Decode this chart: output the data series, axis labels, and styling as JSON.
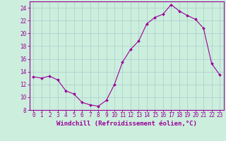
{
  "hours": [
    0,
    1,
    2,
    3,
    4,
    5,
    6,
    7,
    8,
    9,
    10,
    11,
    12,
    13,
    14,
    15,
    16,
    17,
    18,
    19,
    20,
    21,
    22,
    23
  ],
  "values": [
    13.2,
    13.0,
    13.3,
    12.7,
    11.0,
    10.5,
    9.2,
    8.8,
    8.6,
    9.5,
    12.0,
    15.5,
    17.5,
    18.8,
    21.5,
    22.5,
    23.0,
    24.5,
    23.5,
    22.8,
    22.2,
    20.8,
    15.3,
    13.5
  ],
  "xlabel": "Windchill (Refroidissement éolien,°C)",
  "ylim": [
    8,
    25
  ],
  "xlim_min": -0.5,
  "xlim_max": 23.5,
  "yticks": [
    8,
    10,
    12,
    14,
    16,
    18,
    20,
    22,
    24
  ],
  "xticks": [
    0,
    1,
    2,
    3,
    4,
    5,
    6,
    7,
    8,
    9,
    10,
    11,
    12,
    13,
    14,
    15,
    16,
    17,
    18,
    19,
    20,
    21,
    22,
    23
  ],
  "line_color": "#990099",
  "marker": "D",
  "marker_size": 2.0,
  "bg_color": "#cceedd",
  "grid_color": "#aacccc",
  "axis_color": "#990099",
  "tick_color": "#990099",
  "label_color": "#990099",
  "xlabel_fontsize": 6.5,
  "tick_fontsize": 5.5,
  "linewidth": 0.8
}
